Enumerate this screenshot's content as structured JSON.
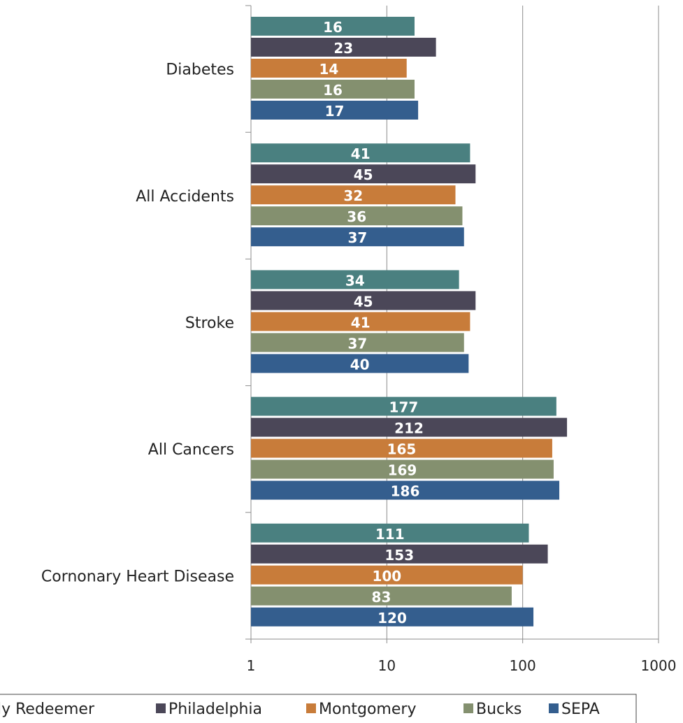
{
  "chart_data": {
    "type": "bar",
    "orientation": "horizontal",
    "x_scale": "log",
    "xlim": [
      1,
      1000
    ],
    "x_ticks": [
      "1",
      "10",
      "100",
      "1000"
    ],
    "grid": "vertical major gridlines",
    "legend_position": "bottom",
    "categories": [
      "Diabetes",
      "All Accidents",
      "Stroke",
      "All Cancers",
      "Cornonary Heart Disease"
    ],
    "series": [
      {
        "name": "Holy Redeemer",
        "color": "#4a8080",
        "values": [
          16,
          41,
          34,
          177,
          111
        ]
      },
      {
        "name": "Philadelphia",
        "color": "#4b4758",
        "values": [
          23,
          45,
          45,
          212,
          153
        ]
      },
      {
        "name": "Montgomery",
        "color": "#c87c3a",
        "values": [
          14,
          32,
          41,
          165,
          100
        ]
      },
      {
        "name": "Bucks",
        "color": "#84906f",
        "values": [
          16,
          36,
          37,
          169,
          83
        ]
      },
      {
        "name": "SEPA",
        "color": "#345e8e",
        "values": [
          17,
          37,
          40,
          186,
          120
        ]
      }
    ]
  }
}
